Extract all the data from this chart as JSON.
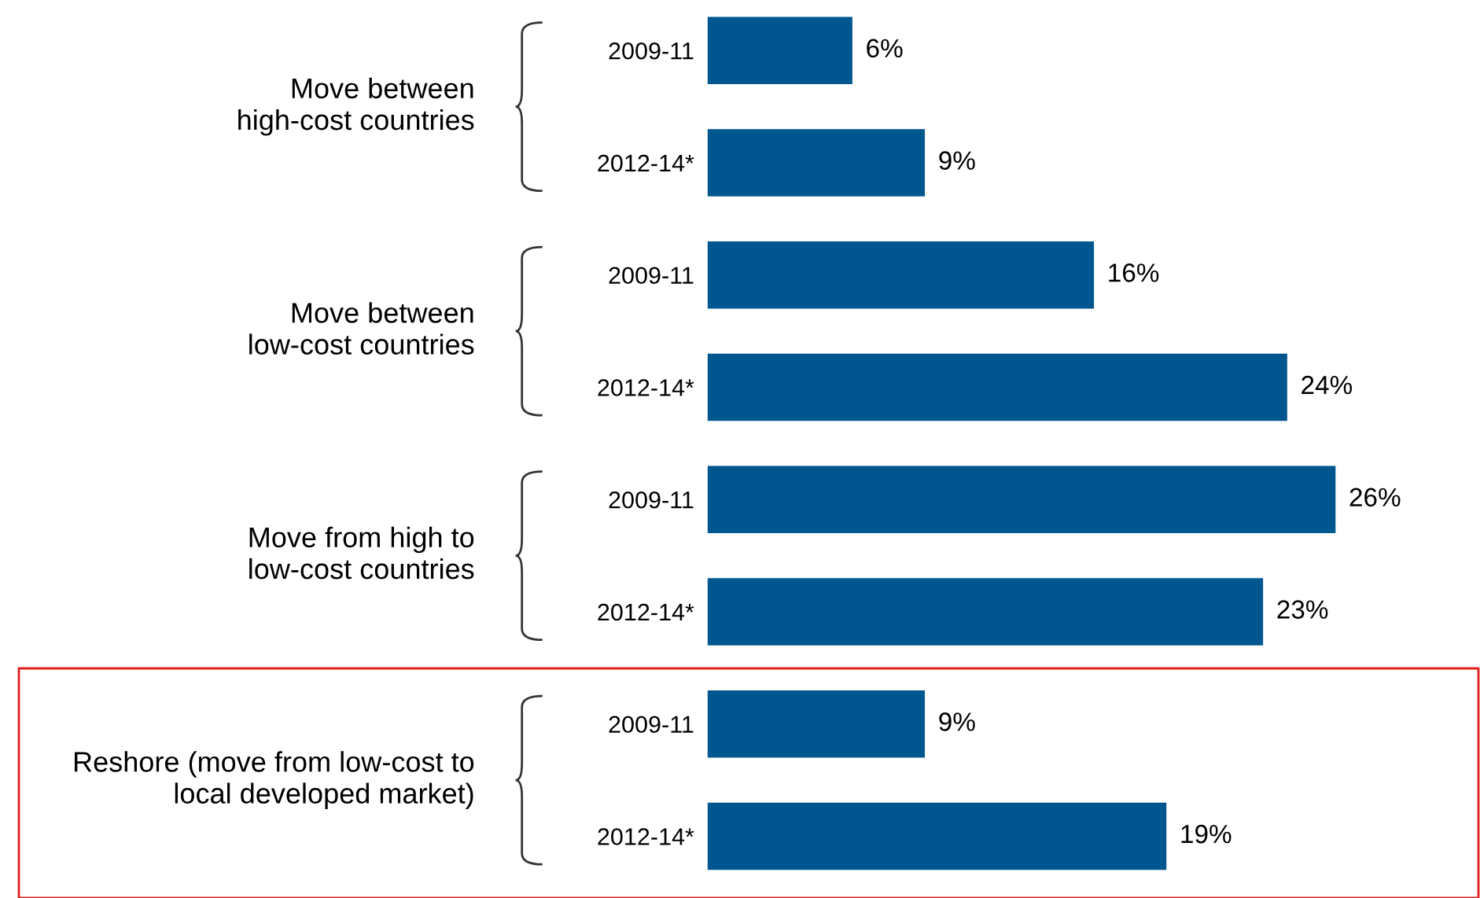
{
  "chart_data": {
    "type": "bar",
    "orientation": "horizontal",
    "categories": [
      "2009-11",
      "2012-14*",
      "2009-11",
      "2012-14*",
      "2009-11",
      "2012-14*",
      "2009-11",
      "2012-14*"
    ],
    "values": [
      6,
      9,
      16,
      24,
      26,
      23,
      9,
      19
    ],
    "value_labels": [
      "6%",
      "9%",
      "16%",
      "24%",
      "26%",
      "23%",
      "9%",
      "19%"
    ],
    "color": "#00568f",
    "annotations": [
      "Move between\nhigh-cost countries",
      "Move between\nlow-cost countries",
      "Move from high to\nlow-cost countries",
      "Reshore (move from low-cost to\nlocal developed market)"
    ],
    "grid": false,
    "legend": false
  }
}
